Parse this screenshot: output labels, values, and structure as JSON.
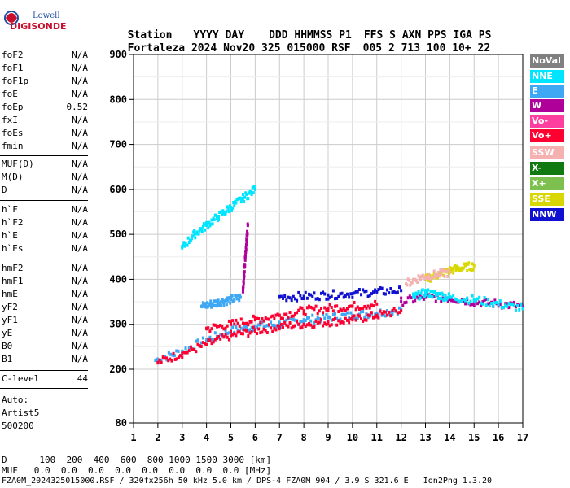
{
  "logo": {
    "line1": "Lowell",
    "line2": "DIGISONDE"
  },
  "header": {
    "labels": [
      "Station",
      "YYYY",
      "DAY",
      "DDD",
      "HHMMSS",
      "P1",
      "FFS",
      "S",
      "AXN",
      "PPS",
      "IGA",
      "PS"
    ],
    "values": [
      "Fortaleza",
      "2024",
      "Nov20",
      "325",
      "015000",
      "RSF",
      "005",
      "2",
      "713",
      "100",
      "10+",
      "22"
    ]
  },
  "params": [
    {
      "name": "foF2",
      "value": "N/A"
    },
    {
      "name": "foF1",
      "value": "N/A"
    },
    {
      "name": "foF1p",
      "value": "N/A"
    },
    {
      "name": "foE",
      "value": "N/A"
    },
    {
      "name": "foEp",
      "value": "0.52"
    },
    {
      "name": "fxI",
      "value": "N/A"
    },
    {
      "name": "foEs",
      "value": "N/A"
    },
    {
      "name": "fmin",
      "value": "N/A"
    },
    {
      "name": "MUF(D)",
      "value": "N/A"
    },
    {
      "name": "M(D)",
      "value": "N/A"
    },
    {
      "name": "D",
      "value": "N/A"
    },
    {
      "name": "h`F",
      "value": "N/A"
    },
    {
      "name": "h`F2",
      "value": "N/A"
    },
    {
      "name": "h`E",
      "value": "N/A"
    },
    {
      "name": "h`Es",
      "value": "N/A"
    },
    {
      "name": "hmF2",
      "value": "N/A"
    },
    {
      "name": "hmF1",
      "value": "N/A"
    },
    {
      "name": "hmE",
      "value": "N/A"
    },
    {
      "name": "yF2",
      "value": "N/A"
    },
    {
      "name": "yF1",
      "value": "N/A"
    },
    {
      "name": "yE",
      "value": "N/A"
    },
    {
      "name": "B0",
      "value": "N/A"
    },
    {
      "name": "B1",
      "value": "N/A"
    },
    {
      "name": "C-level",
      "value": "44"
    }
  ],
  "auto": [
    "Auto:",
    "Artist5",
    "500200"
  ],
  "legend": [
    {
      "label": "NoVal",
      "color": "#808080"
    },
    {
      "label": "NNE",
      "color": "#00e5ff"
    },
    {
      "label": "E",
      "color": "#3fa8f5"
    },
    {
      "label": "W",
      "color": "#b0009a"
    },
    {
      "label": "Vo-",
      "color": "#ff3fa0"
    },
    {
      "label": "Vo+",
      "color": "#ff0030"
    },
    {
      "label": "SSW",
      "color": "#f5b0b0"
    },
    {
      "label": "X-",
      "color": "#107a10"
    },
    {
      "label": "X+",
      "color": "#7ec050"
    },
    {
      "label": "SSE",
      "color": "#d8d800"
    },
    {
      "label": "NNW",
      "color": "#1010d0"
    }
  ],
  "footer": {
    "d_line": "D      100  200  400  600  800 1000 1500 3000 [km]",
    "muf_line": "MUF   0.0  0.0  0.0  0.0  0.0  0.0  0.0  0.0 [MHz]",
    "info_line": "FZA0M_2024325015000.RSF / 320fx256h 50 kHz 5.0 km / DPS-4 FZA0M 904 / 3.9 S 321.6 E   Ion2Png 1.3.20"
  },
  "chart_data": {
    "type": "scatter",
    "xlim": [
      1,
      17
    ],
    "ylim": [
      80,
      900
    ],
    "xticks": [
      "1",
      "2",
      "3",
      "4",
      "5",
      "6",
      "7",
      "8",
      "9",
      "10",
      "11",
      "12",
      "13",
      "14",
      "15",
      "16",
      "17"
    ],
    "yticks": [
      "900",
      "800",
      "700",
      "600",
      "500",
      "400",
      "300",
      "200",
      "80"
    ],
    "grid": true,
    "legend_position": "right",
    "traces": [
      {
        "mode": "E",
        "x": [
          1.9,
          3,
          4,
          5,
          6,
          7,
          8,
          9,
          10,
          11,
          12
        ],
        "y": [
          220,
          240,
          265,
          285,
          295,
          300,
          310,
          315,
          320,
          325,
          332
        ]
      },
      {
        "mode": "Vo+",
        "x": [
          2,
          3,
          4,
          5,
          6,
          7,
          8,
          9,
          10,
          11,
          12
        ],
        "y": [
          215,
          235,
          255,
          275,
          285,
          295,
          300,
          305,
          310,
          320,
          330
        ]
      },
      {
        "mode": "Vo+",
        "x": [
          4,
          5,
          6,
          7,
          8,
          9,
          10,
          11
        ],
        "y": [
          290,
          300,
          310,
          320,
          330,
          335,
          340,
          345
        ]
      },
      {
        "mode": "E",
        "x": [
          3.8,
          4.2,
          4.6,
          5,
          5.4
        ],
        "y": [
          340,
          345,
          350,
          355,
          360
        ]
      },
      {
        "mode": "NNW",
        "x": [
          7,
          8,
          9,
          10,
          11,
          12
        ],
        "y": [
          360,
          362,
          365,
          368,
          372,
          375
        ]
      },
      {
        "mode": "W",
        "x": [
          12,
          13,
          14,
          15,
          16,
          17
        ],
        "y": [
          350,
          360,
          358,
          350,
          345,
          340
        ]
      },
      {
        "mode": "NNE",
        "x": [
          12.5,
          13,
          13.5,
          14,
          15,
          16,
          17
        ],
        "y": [
          360,
          370,
          365,
          360,
          355,
          345,
          335
        ]
      },
      {
        "mode": "SSE",
        "x": [
          13,
          13.5,
          14,
          14.5,
          15
        ],
        "y": [
          400,
          410,
          420,
          425,
          430
        ]
      },
      {
        "mode": "SSW",
        "x": [
          12.2,
          12.8,
          13.4,
          14
        ],
        "y": [
          390,
          405,
          410,
          415
        ]
      },
      {
        "mode": "NNE",
        "x": [
          3,
          3.5,
          4,
          4.5,
          5,
          5.5,
          6
        ],
        "y": [
          470,
          500,
          520,
          540,
          560,
          580,
          600
        ]
      },
      {
        "mode": "W",
        "x": [
          5.5,
          5.6,
          5.7
        ],
        "y": [
          380,
          450,
          520
        ]
      }
    ]
  }
}
